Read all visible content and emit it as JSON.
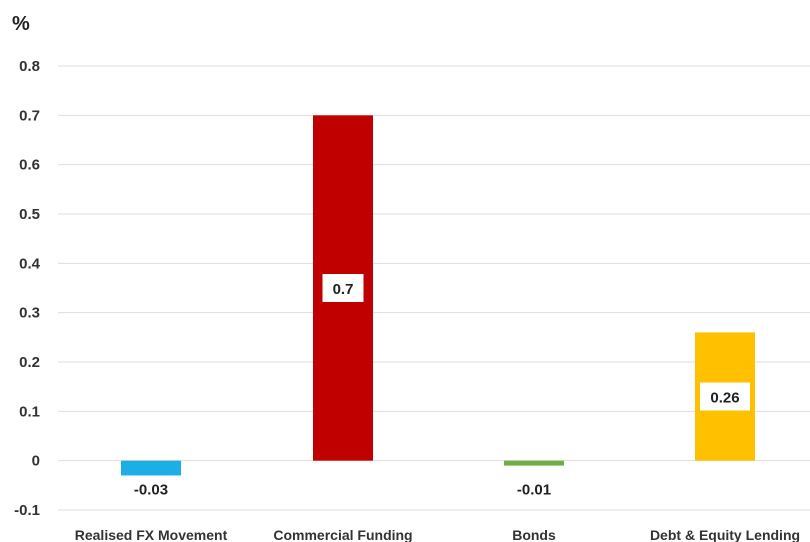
{
  "chart_data": {
    "type": "bar",
    "ylabel": "%",
    "categories": [
      "Realised FX Movement",
      "Commercial Funding",
      "Bonds",
      "Debt & Equity Lending"
    ],
    "values": [
      -0.03,
      0.7,
      -0.01,
      0.26
    ],
    "value_labels": [
      "-0.03",
      "0.7",
      "-0.01",
      "0.26"
    ],
    "colors": [
      "#1eaee6",
      "#c00000",
      "#70ad47",
      "#ffc000"
    ],
    "yticks": [
      "0.8",
      "0.7",
      "0.6",
      "0.5",
      "0.4",
      "0.3",
      "0.2",
      "0.1",
      "0",
      "-0.1"
    ],
    "ytick_values": [
      0.8,
      0.7,
      0.6,
      0.5,
      0.4,
      0.3,
      0.2,
      0.1,
      0,
      -0.1
    ],
    "ylim": [
      -0.1,
      0.8
    ],
    "grid": true,
    "legend": "none"
  }
}
